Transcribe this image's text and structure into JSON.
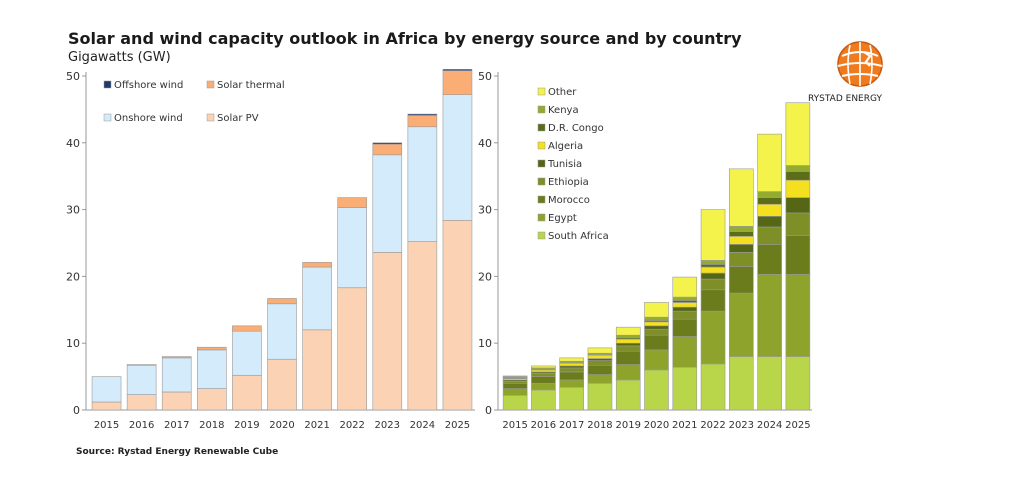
{
  "header": {
    "title": "Solar and wind capacity outlook in Africa by energy source and by country",
    "subtitle": "Gigawatts (GW)"
  },
  "footer": {
    "source": "Source: Rystad Energy Renewable Cube"
  },
  "brand": {
    "name": "RYSTAD ENERGY"
  },
  "chart_data": [
    {
      "type": "bar",
      "stacked": true,
      "categories": [
        "2015",
        "2016",
        "2017",
        "2018",
        "2019",
        "2020",
        "2021",
        "2022",
        "2023",
        "2024",
        "2025"
      ],
      "ylim": [
        0,
        50
      ],
      "yticks": [
        0,
        10,
        20,
        30,
        40,
        50
      ],
      "grid": false,
      "legend_position": "top-left",
      "series": [
        {
          "name": "Solar PV",
          "color": "#fbd3b4",
          "values": [
            1.2,
            2.3,
            2.7,
            3.2,
            5.2,
            7.6,
            12.0,
            18.3,
            23.6,
            25.2,
            28.4
          ]
        },
        {
          "name": "Onshore wind",
          "color": "#d3ebfa",
          "values": [
            3.8,
            4.4,
            5.1,
            5.8,
            6.6,
            8.3,
            9.4,
            12.0,
            14.6,
            17.2,
            18.8
          ]
        },
        {
          "name": "Solar thermal",
          "color": "#fbad76",
          "values": [
            0.0,
            0.1,
            0.2,
            0.4,
            0.8,
            0.8,
            0.7,
            1.5,
            1.6,
            1.7,
            3.6
          ]
        },
        {
          "name": "Offshore wind",
          "color": "#1f3a6b",
          "values": [
            0.0,
            0.0,
            0.0,
            0.0,
            0.0,
            0.0,
            0.0,
            0.0,
            0.2,
            0.2,
            0.2
          ]
        }
      ]
    },
    {
      "type": "bar",
      "stacked": true,
      "categories": [
        "2015",
        "2016",
        "2017",
        "2018",
        "2019",
        "2020",
        "2021",
        "2022",
        "2023",
        "2024",
        "2025"
      ],
      "ylim": [
        0,
        50
      ],
      "yticks": [
        0,
        10,
        20,
        30,
        40,
        50
      ],
      "grid": false,
      "legend_position": "top-left",
      "series": [
        {
          "name": "South Africa",
          "color": "#b9d64a",
          "values": [
            2.2,
            3.0,
            3.4,
            4.0,
            4.5,
            6.0,
            6.4,
            6.9,
            8.0,
            8.0,
            8.0
          ]
        },
        {
          "name": "Egypt",
          "color": "#8ea32b",
          "values": [
            1.0,
            1.0,
            1.1,
            1.3,
            2.3,
            3.0,
            4.6,
            7.9,
            9.5,
            12.3,
            12.3
          ]
        },
        {
          "name": "Morocco",
          "color": "#6b7c1c",
          "values": [
            0.8,
            1.0,
            1.2,
            1.4,
            2.0,
            2.2,
            2.6,
            3.2,
            4.0,
            4.5,
            5.8
          ]
        },
        {
          "name": "Ethiopia",
          "color": "#7d8f26",
          "values": [
            0.3,
            0.5,
            0.6,
            0.7,
            0.8,
            0.9,
            1.2,
            1.6,
            2.1,
            2.6,
            3.4
          ]
        },
        {
          "name": "Tunisia",
          "color": "#556614",
          "values": [
            0.2,
            0.2,
            0.3,
            0.3,
            0.4,
            0.5,
            0.6,
            0.9,
            1.2,
            1.6,
            2.3
          ]
        },
        {
          "name": "Algeria",
          "color": "#f5e020",
          "values": [
            0.2,
            0.3,
            0.4,
            0.5,
            0.6,
            0.6,
            0.7,
            0.9,
            1.2,
            1.8,
            2.6
          ]
        },
        {
          "name": "D.R. Congo",
          "color": "#5b6d1a",
          "values": [
            0.1,
            0.1,
            0.1,
            0.1,
            0.2,
            0.2,
            0.3,
            0.4,
            0.7,
            1.0,
            1.3
          ]
        },
        {
          "name": "Kenya",
          "color": "#93ab2e",
          "values": [
            0.2,
            0.2,
            0.2,
            0.2,
            0.4,
            0.5,
            0.5,
            0.6,
            0.8,
            0.9,
            0.9
          ]
        },
        {
          "name": "Other",
          "color": "#f4f34b",
          "values": [
            0.1,
            0.3,
            0.5,
            0.8,
            1.2,
            2.2,
            3.0,
            7.6,
            8.6,
            8.6,
            9.4
          ]
        }
      ]
    }
  ]
}
